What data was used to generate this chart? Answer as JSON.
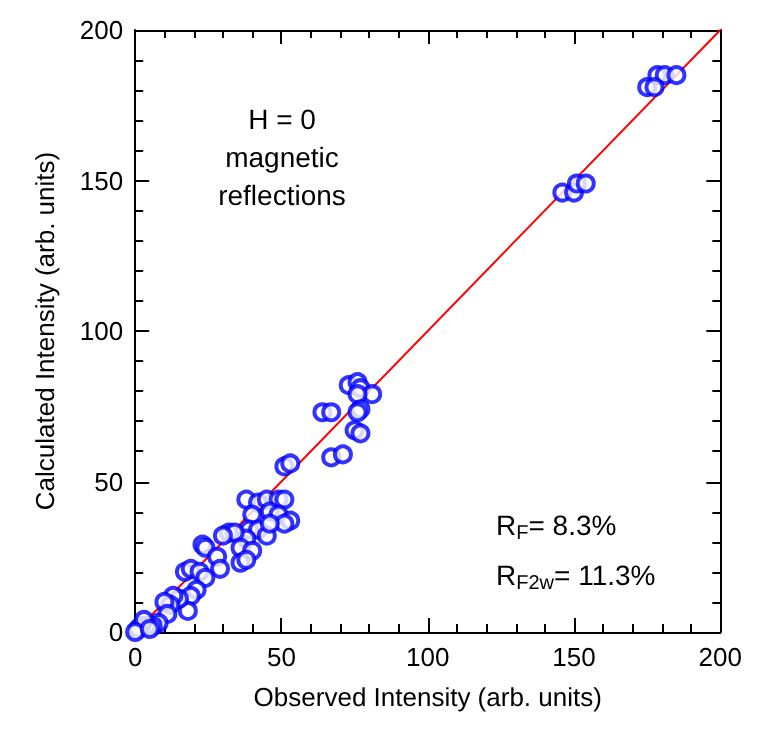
{
  "chart_data": {
    "type": "scatter",
    "xlabel": "Observed Intensity (arb. units)",
    "ylabel": "Calculated Intensity (arb. units)",
    "xlim": [
      0,
      200
    ],
    "xticks": [
      0,
      50,
      100,
      150,
      200
    ],
    "ylim": [
      0,
      200
    ],
    "yticks": [
      0,
      50,
      100,
      150,
      200
    ],
    "grid": false,
    "marker": "circle",
    "annotations": [
      "H = 0\nmagnetic\nreflections",
      "R$_{F}$= 8.3%",
      "R$_{F2w}$= 11.3%"
    ],
    "series": [
      {
        "color": "#0000ff",
        "x": [
          175,
          178.5,
          181,
          185,
          177.5,
          146,
          150,
          151,
          154,
          73,
          76,
          77,
          81,
          76,
          77,
          76,
          75,
          77,
          64,
          67,
          67,
          71,
          51,
          53,
          38,
          42,
          45,
          49,
          51,
          46,
          49,
          40,
          39,
          42,
          53,
          51,
          45,
          46,
          38,
          32,
          34,
          30,
          36,
          40,
          36,
          38,
          23,
          24,
          28,
          29,
          17,
          19,
          22,
          24,
          21,
          19,
          18,
          15,
          13,
          12,
          10,
          11,
          8,
          6,
          4,
          2,
          1,
          3,
          0,
          5
        ],
        "values": [
          181,
          185,
          185,
          185,
          181,
          146,
          146,
          149,
          149,
          82,
          83,
          81,
          79,
          79,
          74,
          73,
          67,
          66,
          73,
          73,
          58,
          59,
          55,
          56,
          44,
          43,
          44,
          44,
          44,
          40,
          39,
          39,
          34,
          34,
          37,
          36,
          32,
          36,
          31,
          33,
          33,
          32,
          28,
          27,
          23,
          24,
          29,
          28,
          25,
          21,
          20,
          21,
          20,
          18,
          14,
          12,
          7,
          11,
          12,
          9,
          10,
          6,
          3,
          2,
          2,
          2,
          1,
          4,
          0,
          1
        ]
      },
      {
        "type": "line",
        "color": "#ff0000",
        "marker": "none",
        "x": [
          0,
          200
        ],
        "values": [
          0,
          200
        ]
      }
    ]
  }
}
